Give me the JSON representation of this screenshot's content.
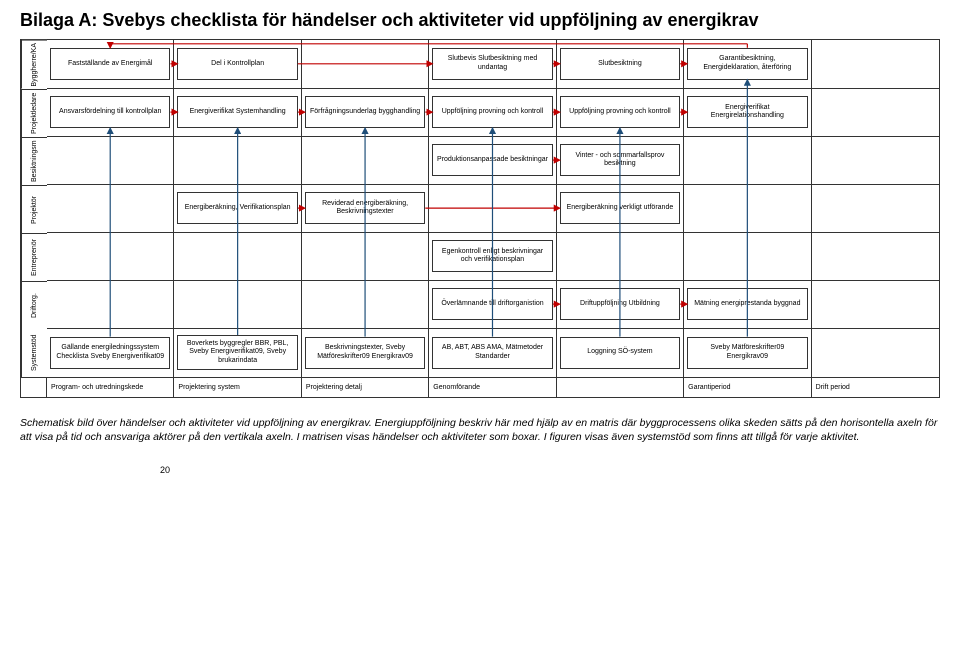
{
  "title": "Bilaga A: Svebys checklista för händelser och aktiviteter vid uppföljning av energikrav",
  "lanes": [
    {
      "label": "Byggherre/KA",
      "boxes": [
        "Fastställande av Energimål",
        "Del i Kontrollplan",
        "",
        "Slutbevis Slutbesiktning med undantag",
        "Slutbesiktning",
        "Garantibesiktning, Energideklaration, återföring",
        ""
      ]
    },
    {
      "label": "Projektledare",
      "boxes": [
        "Ansvarsfördelning till kontrollplan",
        "Energiverifikat Systemhandling",
        "Förfrågningsunderlag bygghandling",
        "Uppföljning provning och kontroll",
        "Uppföljning provning och kontroll",
        "Energiverifikat Energirelationshandling",
        ""
      ]
    },
    {
      "label": "Besiktningsm",
      "boxes": [
        "",
        "",
        "",
        "Produktionsanpassade besiktningar",
        "Vinter - och sommarfallsprov besiktning",
        "",
        ""
      ]
    },
    {
      "label": "Projektör",
      "boxes": [
        "",
        "Energiberäkning, Verifikationsplan",
        "Reviderad energiberäkning, Beskrivningstexter",
        "",
        "Energiberäkning verkligt utförande",
        "",
        ""
      ]
    },
    {
      "label": "Entreprenör",
      "boxes": [
        "",
        "",
        "",
        "Egenkontroll enligt beskrivningar och verifikationsplan",
        "",
        "",
        ""
      ]
    },
    {
      "label": "Driftorg.",
      "boxes": [
        "",
        "",
        "",
        "Överlämnande till driftorganistion",
        "Driftuppföljning Utbildning",
        "Mätning energiprestanda byggnad",
        ""
      ]
    },
    {
      "label": "Systemstöd",
      "boxes": [
        "Gällande energiledningssystem Checklista Sveby Energiverifikat09",
        "Boverkets byggregler BBR, PBL, Sveby Energiverifikat09, Sveby brukarindata",
        "Beskrivningstexter, Sveby Mätföreskrifter09 Energikrav09",
        "AB, ABT, ABS AMA, Mätmetoder Standarder",
        "Loggning SÖ-system",
        "Sveby Mätföreskrifter09 Energikrav09",
        ""
      ]
    }
  ],
  "phases": [
    "Program- och utredningskede",
    "Projektering system",
    "Projektering detalj",
    "Genomförande",
    "",
    "Garantiperiod",
    "Drift period"
  ],
  "caption": "Schematisk bild över händelser och aktiviteter vid uppföljning av energikrav. Energiuppföljning beskriv här med hjälp av en matris där byggprocessens olika skeden sätts på den horisontella axeln för att visa på tid och ansvariga aktörer på den vertikala axeln. I matrisen visas händelser och aktiviteter som boxar. I figuren visas även systemstöd som finns att tillgå för varje aktivitet.",
  "pageNumber": "20",
  "colors": {
    "arrow_red": "#c00000",
    "arrow_blue": "#1f4e79",
    "border": "#333333",
    "bg": "#ffffff"
  }
}
